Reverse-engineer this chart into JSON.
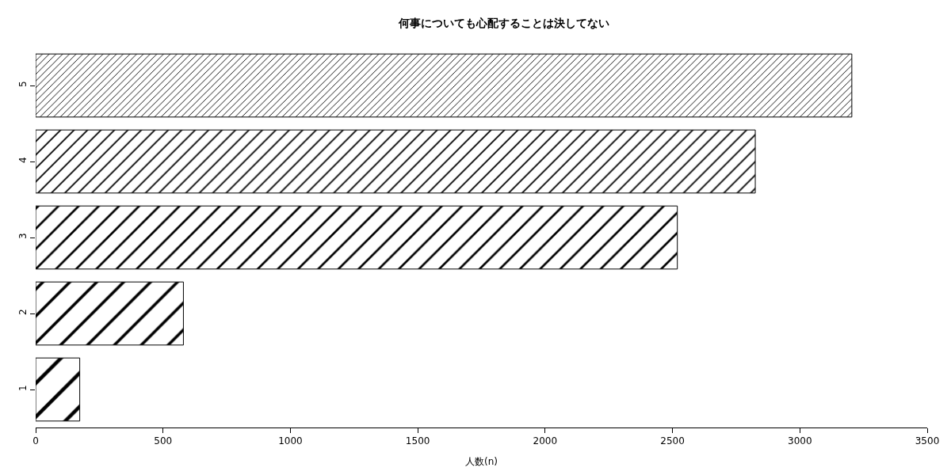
{
  "chart_data": {
    "type": "bar",
    "orientation": "horizontal",
    "title": "何事についても心配することは決してない",
    "xlabel": "人数(n)",
    "categories": [
      "5",
      "4",
      "3",
      "2",
      "1"
    ],
    "values": [
      3204,
      2825,
      2519,
      580,
      173
    ],
    "color": "#000000",
    "xlim": [
      0,
      3500
    ],
    "xticks": [
      0,
      500,
      1000,
      1500,
      2000,
      2500,
      3000,
      3500
    ]
  }
}
